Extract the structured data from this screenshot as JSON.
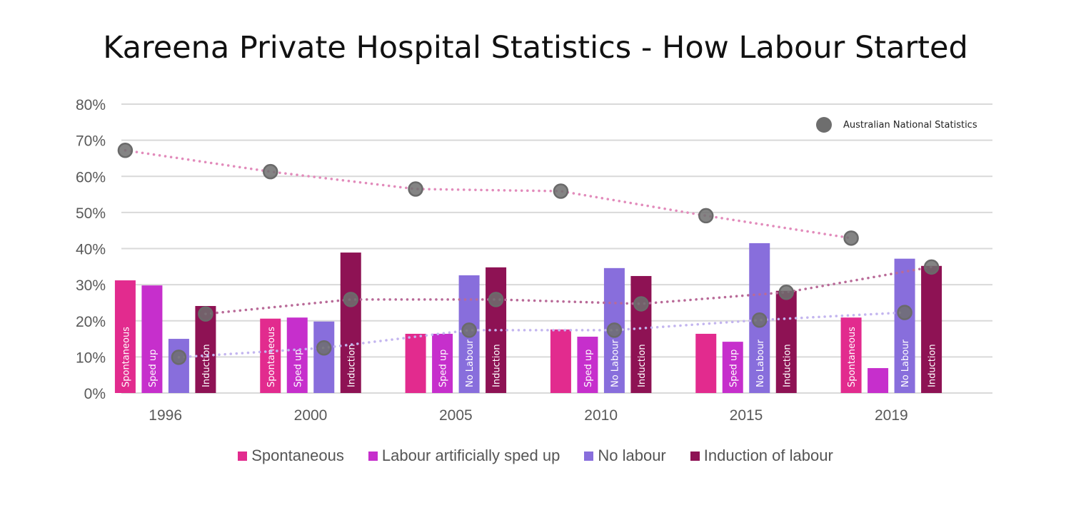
{
  "title": "Kareena Private Hospital Statistics - How Labour Started",
  "chart_data": {
    "type": "bar",
    "title": "Kareena Private Hospital Statistics - How Labour Started",
    "xlabel": "",
    "ylabel": "",
    "ylim": [
      0,
      80
    ],
    "yticks": [
      "0%",
      "10%",
      "20%",
      "30%",
      "40%",
      "50%",
      "60%",
      "70%",
      "80%"
    ],
    "grid": true,
    "legend_placement": "bottom",
    "categories": [
      "1996",
      "2000",
      "2005",
      "2010",
      "2015",
      "2019"
    ],
    "series": [
      {
        "name": "Spontaneous",
        "color": "#e22b8e",
        "values": [
          31.2,
          20.6,
          16.4,
          17.6,
          16.4,
          20.9
        ],
        "bar_labels": [
          "Spontaneous",
          "Spontaneous",
          "",
          "",
          "",
          "Spontaneous"
        ]
      },
      {
        "name": "Labour artificially sped up",
        "color": "#c62fcc",
        "values": [
          29.8,
          20.9,
          16.4,
          15.6,
          14.2,
          6.9
        ],
        "bar_labels": [
          "Sped up",
          "Sped up",
          "Sped up",
          "Sped up",
          "Sped up",
          ""
        ]
      },
      {
        "name": "No labour",
        "color": "#886edc",
        "values": [
          15.0,
          19.8,
          32.6,
          34.6,
          41.5,
          37.2
        ],
        "bar_labels": [
          "",
          "",
          "No Labour",
          "No Labour",
          "No Labour",
          "No Labour"
        ]
      },
      {
        "name": "Induction of labour",
        "color": "#8e1254",
        "values": [
          24.1,
          38.9,
          34.8,
          32.4,
          28.3,
          35.2
        ],
        "bar_labels": [
          "Induction",
          "Induction",
          "Induction",
          "Induction",
          "Induction",
          "Induction"
        ]
      }
    ],
    "national_statistics": {
      "name": "Australian National Statistics",
      "series": [
        {
          "of": "Spontaneous",
          "line_color": "#e28bbb",
          "values": [
            67.2,
            61.3,
            56.5,
            55.9,
            49.1,
            42.9
          ]
        },
        {
          "of": "No labour",
          "line_color": "#c3b5ef",
          "values": [
            9.9,
            12.5,
            17.4,
            17.4,
            20.2,
            22.3
          ]
        },
        {
          "of": "Induction of labour",
          "line_color": "#b96a98",
          "values": [
            21.9,
            25.9,
            25.9,
            24.7,
            27.9,
            34.9
          ]
        }
      ]
    }
  }
}
